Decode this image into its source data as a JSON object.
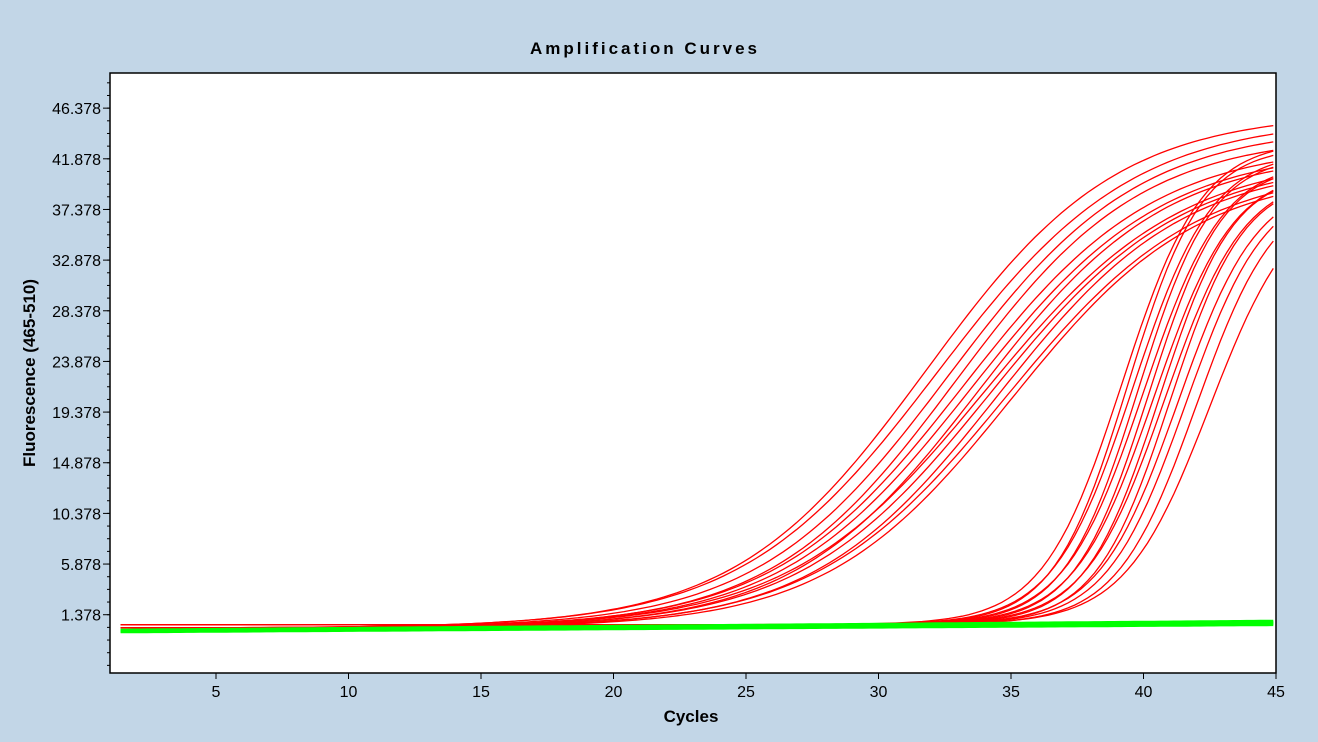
{
  "chart_data": {
    "type": "line",
    "title": "Amplification Curves",
    "xlabel": "Cycles",
    "ylabel": "Fluorescence (465-510)",
    "xlim": [
      1,
      45
    ],
    "ylim": [
      -3.8,
      49.5
    ],
    "x_ticks": [
      5,
      10,
      15,
      20,
      25,
      30,
      35,
      40,
      45
    ],
    "y_ticks": [
      1.378,
      5.878,
      10.378,
      14.878,
      19.378,
      23.878,
      28.378,
      32.878,
      37.378,
      41.878,
      46.378
    ],
    "y_tick_labels": [
      "1.378",
      "5.878",
      "10.378",
      "14.878",
      "19.378",
      "23.878",
      "28.378",
      "32.878",
      "37.378",
      "41.878",
      "46.378"
    ],
    "grid": false,
    "legend": "none",
    "colors": {
      "early_group": "#ff0000",
      "late_group": "#ff0000",
      "negative_group": "#00ff00"
    },
    "series_groups": [
      {
        "group": "early",
        "color": "#ff0000",
        "curves": [
          {
            "baseline": 0.2,
            "plateau": 46.0,
            "midpoint": 31.8,
            "slope": 3.6
          },
          {
            "baseline": 0.2,
            "plateau": 45.5,
            "midpoint": 32.2,
            "slope": 3.7
          },
          {
            "baseline": 0.2,
            "plateau": 44.8,
            "midpoint": 32.6,
            "slope": 3.6
          },
          {
            "baseline": 0.2,
            "plateau": 44.0,
            "midpoint": 32.9,
            "slope": 3.5
          },
          {
            "baseline": 0.2,
            "plateau": 43.2,
            "midpoint": 33.2,
            "slope": 3.6
          },
          {
            "baseline": 0.2,
            "plateau": 42.8,
            "midpoint": 33.5,
            "slope": 3.6
          },
          {
            "baseline": 0.2,
            "plateau": 42.5,
            "midpoint": 33.8,
            "slope": 3.5
          },
          {
            "baseline": 0.2,
            "plateau": 42.2,
            "midpoint": 34.0,
            "slope": 3.7
          },
          {
            "baseline": 0.2,
            "plateau": 41.8,
            "midpoint": 34.2,
            "slope": 3.6
          },
          {
            "baseline": 0.2,
            "plateau": 41.5,
            "midpoint": 34.5,
            "slope": 3.5
          },
          {
            "baseline": 0.2,
            "plateau": 41.2,
            "midpoint": 34.8,
            "slope": 3.6
          },
          {
            "baseline": 0.2,
            "plateau": 40.8,
            "midpoint": 35.0,
            "slope": 3.5
          }
        ]
      },
      {
        "group": "late",
        "color": "#ff0000",
        "curves": [
          {
            "baseline": 0.5,
            "plateau": 43.5,
            "midpoint": 39.2,
            "slope": 1.5
          },
          {
            "baseline": 0.5,
            "plateau": 43.0,
            "midpoint": 39.4,
            "slope": 1.4
          },
          {
            "baseline": 0.5,
            "plateau": 42.6,
            "midpoint": 39.6,
            "slope": 1.5
          },
          {
            "baseline": 0.5,
            "plateau": 42.2,
            "midpoint": 39.8,
            "slope": 1.4
          },
          {
            "baseline": 0.5,
            "plateau": 41.8,
            "midpoint": 40.0,
            "slope": 1.5
          },
          {
            "baseline": 0.5,
            "plateau": 41.5,
            "midpoint": 40.2,
            "slope": 1.4
          },
          {
            "baseline": 0.5,
            "plateau": 41.0,
            "midpoint": 40.4,
            "slope": 1.5
          },
          {
            "baseline": 0.5,
            "plateau": 40.8,
            "midpoint": 40.6,
            "slope": 1.4
          },
          {
            "baseline": 0.5,
            "plateau": 40.5,
            "midpoint": 40.8,
            "slope": 1.5
          },
          {
            "baseline": 0.5,
            "plateau": 40.2,
            "midpoint": 41.0,
            "slope": 1.4
          },
          {
            "baseline": 0.5,
            "plateau": 40.0,
            "midpoint": 41.3,
            "slope": 1.5
          },
          {
            "baseline": 0.5,
            "plateau": 39.8,
            "midpoint": 41.6,
            "slope": 1.5
          },
          {
            "baseline": 0.5,
            "plateau": 39.5,
            "midpoint": 42.0,
            "slope": 1.5
          },
          {
            "baseline": 0.5,
            "plateau": 39.2,
            "midpoint": 42.5,
            "slope": 1.6
          }
        ]
      },
      {
        "group": "negative",
        "color": "#00ff00",
        "curves": [
          {
            "start": 0.0,
            "end": 0.8
          },
          {
            "start": -0.1,
            "end": 0.6
          },
          {
            "start": -0.15,
            "end": 0.5
          },
          {
            "start": -0.05,
            "end": 0.7
          }
        ]
      }
    ]
  }
}
